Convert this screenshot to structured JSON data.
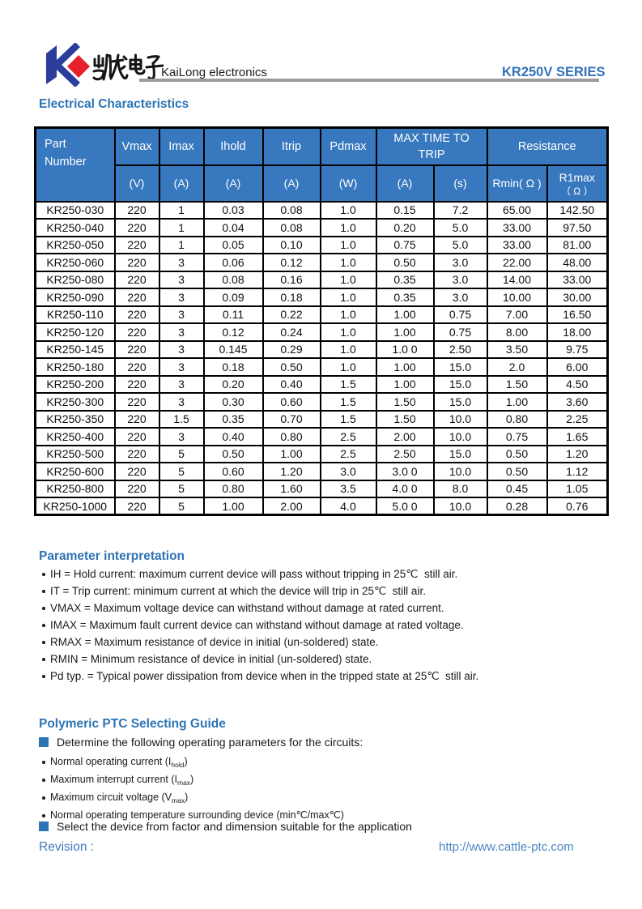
{
  "header": {
    "company_chinese": "凯龙电子",
    "company_latin": "KaiLong electronics",
    "series": "KR250V SERIES",
    "logo_colors": {
      "blue": "#2B3D9C",
      "red": "#E62129"
    }
  },
  "sections": {
    "electrical": {
      "title": "Electrical Characteristics"
    },
    "parameters": {
      "title": "Parameter interpretation",
      "items": [
        "IH = Hold current: maximum current device will pass without tripping in 25℃  still air.",
        "IT = Trip current: minimum current at which the device will trip in 25℃  still air.",
        "VMAX = Maximum voltage device can withstand without damage at rated current.",
        "IMAX = Maximum fault current device can withstand without damage at rated voltage.",
        "RMAX = Maximum resistance of device in initial (un-soldered) state.",
        "RMIN = Minimum resistance of device in initial (un-soldered) state.",
        "Pd typ. = Typical power dissipation from device when in the tripped state at 25℃  still air."
      ]
    },
    "guide": {
      "title": "Polymeric PTC Selecting Guide",
      "bullet1": "Determine the following operating parameters for the circuits:",
      "sub_items": [
        {
          "pre": "Normal operating current (I",
          "sub": "hold",
          "post": ")"
        },
        {
          "pre": "Maximum interrupt current (I",
          "sub": "max",
          "post": ")"
        },
        {
          "pre": "Maximum circuit voltage (V",
          "sub": "max",
          "post": ")"
        },
        {
          "pre": "Normal operating temperature surrounding device (min℃/max℃)",
          "sub": "",
          "post": ""
        }
      ],
      "bullet2": "Select the device from factor and dimension suitable for the application"
    }
  },
  "table": {
    "header": {
      "part_line1": "Part",
      "part_line2": "Number",
      "vmax": "Vmax",
      "imax": "Imax",
      "ihold": "Ihold",
      "itrip": "Itrip",
      "pdmax": "Pdmax",
      "maxtime_line1": "MAX TIME TO",
      "maxtime_line2": "TRIP",
      "resistance": "Resistance",
      "units": [
        "(V)",
        "(A)",
        "(A)",
        "(A)",
        "(W)",
        "(A)",
        "(s)"
      ],
      "rmin": "Rmin( Ω )",
      "r1max_line1": "R1max",
      "r1max_line2": "（ Ω ）"
    },
    "rows": [
      [
        "KR250-030",
        "220",
        "1",
        "0.03",
        "0.08",
        "1.0",
        "0.15",
        "7.2",
        "65.00",
        "142.50"
      ],
      [
        "KR250-040",
        "220",
        "1",
        "0.04",
        "0.08",
        "1.0",
        "0.20",
        "5.0",
        "33.00",
        "97.50"
      ],
      [
        "KR250-050",
        "220",
        "1",
        "0.05",
        "0.10",
        "1.0",
        "0.75",
        "5.0",
        "33.00",
        "81.00"
      ],
      [
        "KR250-060",
        "220",
        "3",
        "0.06",
        "0.12",
        "1.0",
        "0.50",
        "3.0",
        "22.00",
        "48.00"
      ],
      [
        "KR250-080",
        "220",
        "3",
        "0.08",
        "0.16",
        "1.0",
        "0.35",
        "3.0",
        "14.00",
        "33.00"
      ],
      [
        "KR250-090",
        "220",
        "3",
        "0.09",
        "0.18",
        "1.0",
        "0.35",
        "3.0",
        "10.00",
        "30.00"
      ],
      [
        "KR250-110",
        "220",
        "3",
        "0.11",
        "0.22",
        "1.0",
        "1.00",
        "0.75",
        "7.00",
        "16.50"
      ],
      [
        "KR250-120",
        "220",
        "3",
        "0.12",
        "0.24",
        "1.0",
        "1.00",
        "0.75",
        "8.00",
        "18.00"
      ],
      [
        "KR250-145",
        "220",
        "3",
        "0.145",
        "0.29",
        "1.0",
        "1.0 0",
        "2.50",
        "3.50",
        "9.75"
      ],
      [
        "KR250-180",
        "220",
        "3",
        "0.18",
        "0.50",
        "1.0",
        "1.00",
        "15.0",
        "2.0",
        "6.00"
      ],
      [
        "KR250-200",
        "220",
        "3",
        "0.20",
        "0.40",
        "1.5",
        "1.00",
        "15.0",
        "1.50",
        "4.50"
      ],
      [
        "KR250-300",
        "220",
        "3",
        "0.30",
        "0.60",
        "1.5",
        "1.50",
        "15.0",
        "1.00",
        "3.60"
      ],
      [
        "KR250-350",
        "220",
        "1.5",
        "0.35",
        "0.70",
        "1.5",
        "1.50",
        "10.0",
        "0.80",
        "2.25"
      ],
      [
        "KR250-400",
        "220",
        "3",
        "0.40",
        "0.80",
        "2.5",
        "2.00",
        "10.0",
        "0.75",
        "1.65"
      ],
      [
        "KR250-500",
        "220",
        "5",
        "0.50",
        "1.00",
        "2.5",
        "2.50",
        "15.0",
        "0.50",
        "1.20"
      ],
      [
        "KR250-600",
        "220",
        "5",
        "0.60",
        "1.20",
        "3.0",
        "3.0 0",
        "10.0",
        "0.50",
        "1.12"
      ],
      [
        "KR250-800",
        "220",
        "5",
        "0.80",
        "1.60",
        "3.5",
        "4.0 0",
        "8.0",
        "0.45",
        "1.05"
      ],
      [
        "KR250-1000",
        "220",
        "5",
        "1.00",
        "2.00",
        "4.0",
        "5.0 0",
        "10.0",
        "0.28",
        "0.76"
      ]
    ]
  },
  "footer": {
    "revision_label": "Revision :",
    "url": "http://www.cattle-ptc.com"
  }
}
